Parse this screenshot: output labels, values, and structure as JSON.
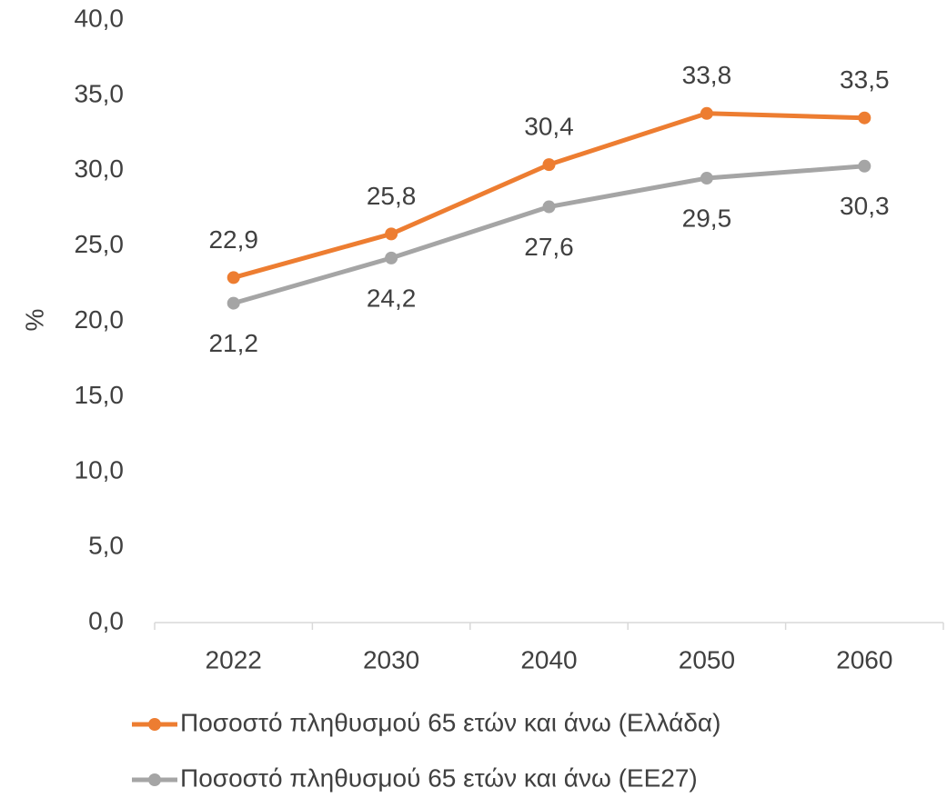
{
  "chart_data": {
    "type": "line",
    "y_label": "%",
    "categories": [
      "2022",
      "2030",
      "2040",
      "2050",
      "2060"
    ],
    "series": [
      {
        "name": "Ποσοστό πληθυσμού 65 ετών και άνω (Ελλάδα)",
        "color": "#ed7d31",
        "label_position": "above",
        "values": [
          22.9,
          25.8,
          30.4,
          33.8,
          33.5
        ],
        "value_labels": [
          "22,9",
          "25,8",
          "30,4",
          "33,8",
          "33,5"
        ]
      },
      {
        "name": "Ποσοστό πληθυσμού 65 ετών και άνω (ΕΕ27)",
        "color": "#a5a5a5",
        "label_position": "below",
        "values": [
          21.2,
          24.2,
          27.6,
          29.5,
          30.3
        ],
        "value_labels": [
          "21,2",
          "24,2",
          "27,6",
          "29,5",
          "30,3"
        ]
      }
    ],
    "ylim": [
      0,
      40
    ],
    "yticks": [
      {
        "value": 0,
        "label": "0,0"
      },
      {
        "value": 5,
        "label": "5,0"
      },
      {
        "value": 10,
        "label": "10,0"
      },
      {
        "value": 15,
        "label": "15,0"
      },
      {
        "value": 20,
        "label": "20,0"
      },
      {
        "value": 25,
        "label": "25,0"
      },
      {
        "value": 30,
        "label": "30,0"
      },
      {
        "value": 35,
        "label": "35,0"
      },
      {
        "value": 40,
        "label": "40,0"
      }
    ],
    "grid": false,
    "legend": "bottom"
  }
}
